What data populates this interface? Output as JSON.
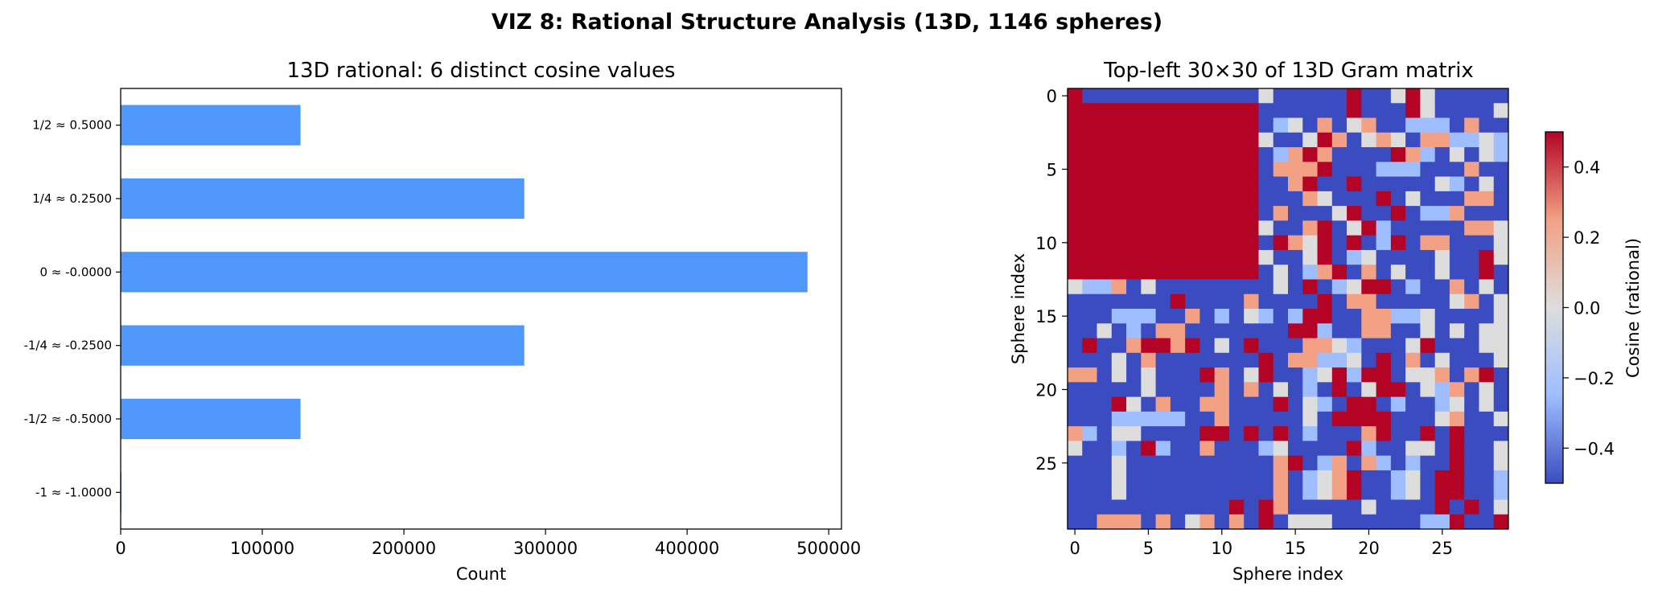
{
  "figure": {
    "title": "VIZ 8: Rational Structure Analysis (13D, 1146 spheres)"
  },
  "chart_data": [
    {
      "type": "bar",
      "orientation": "horizontal",
      "title": "13D rational: 6 distinct cosine values",
      "xlabel": "Count",
      "ylabel": "",
      "categories": [
        "1/2 ≈ 0.5000",
        "1/4 ≈ 0.2500",
        "0 ≈ -0.0000",
        "-1/4 ≈ -0.2500",
        "-1/2 ≈ -0.5000",
        "-1 ≈ -1.0000"
      ],
      "values": [
        127000,
        285000,
        485000,
        285000,
        127000,
        573
      ],
      "xlim": [
        0,
        509000
      ],
      "xticks": [
        0,
        100000,
        200000,
        300000,
        400000,
        500000
      ],
      "xtick_labels": [
        "0",
        "100000",
        "200000",
        "300000",
        "400000",
        "500000"
      ],
      "bar_color": "#4f97fb",
      "grid": false
    },
    {
      "type": "heatmap",
      "title": "Top-left 30×30 of 13D Gram matrix",
      "xlabel": "Sphere index",
      "ylabel": "Sphere index",
      "size": 30,
      "xticks": [
        0,
        5,
        10,
        15,
        20,
        25
      ],
      "xtick_labels": [
        "0",
        "5",
        "10",
        "15",
        "20",
        "25"
      ],
      "yticks": [
        0,
        5,
        10,
        15,
        20,
        25
      ],
      "ytick_labels": [
        "0",
        "5",
        "10",
        "15",
        "20",
        "25"
      ],
      "value_levels": [
        -0.5,
        -0.25,
        0,
        0.25,
        0.5
      ],
      "matrix": [
        "400000000000020000040024200000",
        "444444444444400000040004200002",
        "444444444444401203023001110300",
        "444444444444420024302320331121",
        "444444444444401343000043102021",
        "444444444444403334000111000300",
        "444444444444400340040000021020",
        "444444444444400032000402000330",
        "444444444444403000240040113000",
        "444444444444420034024100000332",
        "444444444444404324040140330002",
        "444444444444420024012000020042",
        "444444444444402013403020020040",
        "211302000000002040124401003020",
        "000000040000300004033000002302",
        "000111003010210144003311200002",
        "002010330000000441003300202022",
        "040034434020400033210002400022",
        "000203000000040331120403020002",
        "330202000430240012414402230340",
        "000002000030302010402440213020",
        "000420300330004021044010012020",
        "000111110030000020444400023002",
        "310220000440404010003400404000",
        "200104100300012000041002204002",
        "000200000000003401303101004002",
        "000200000000003012340012044001",
        "000200000000003012340012044001",
        "000000000004043000002000040402",
        "003330302303040222000000114004"
      ]
    }
  ],
  "colorbar": {
    "label": "Cosine (rational)",
    "range": [
      -0.5,
      0.5
    ],
    "ticks": [
      0.4,
      0.2,
      0.0,
      -0.2,
      -0.4
    ],
    "tick_labels": [
      "0.4",
      "0.2",
      "0.0",
      "−0.2",
      "−0.4"
    ],
    "colors": [
      "#3b4cc0",
      "#9ebeff",
      "#dddddd",
      "#f2a184",
      "#b40426"
    ]
  }
}
